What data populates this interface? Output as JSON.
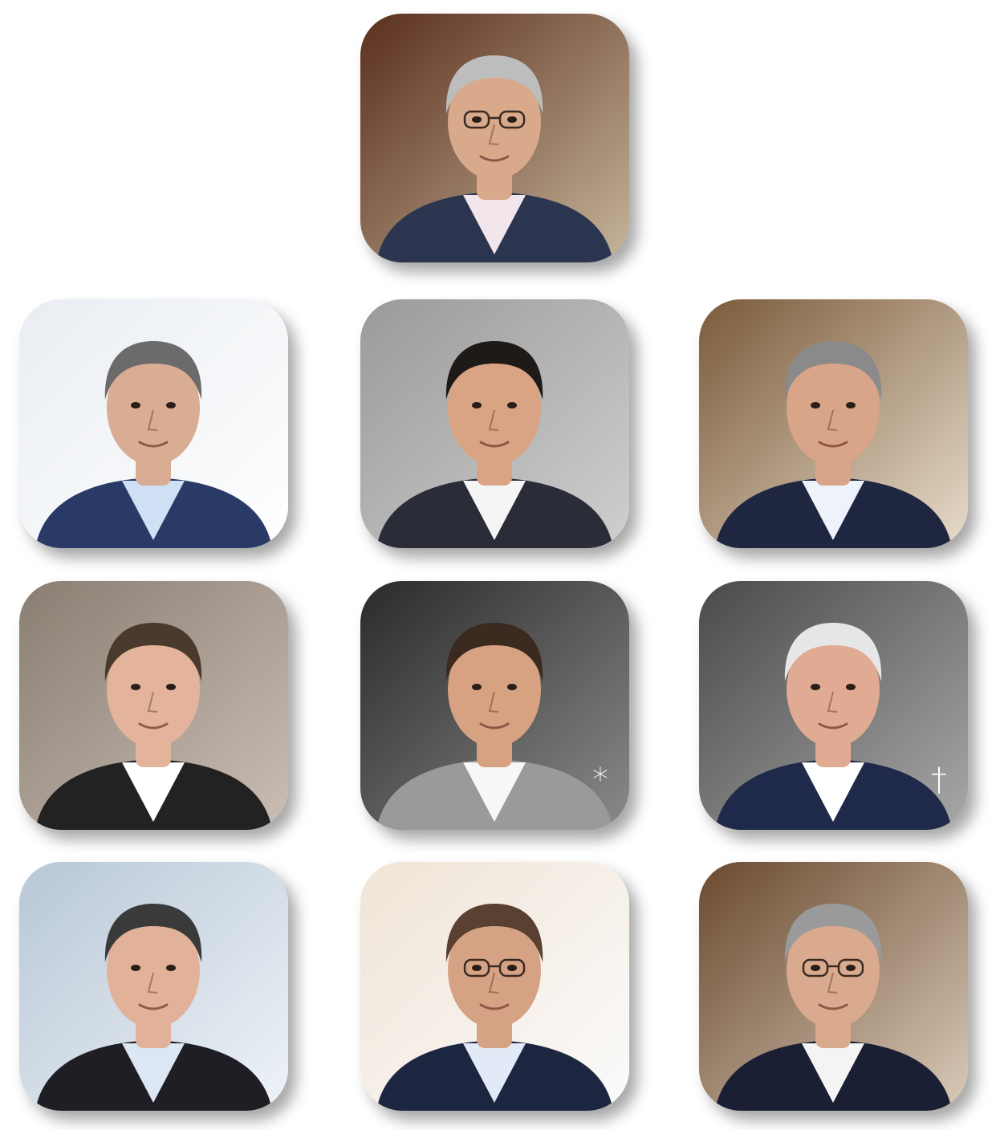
{
  "portraits": [
    {
      "id": "top",
      "bg": [
        "#5a2e1e",
        "#c6b59a"
      ],
      "skin": "#d9a98c",
      "hair": "#bdbdbd",
      "suit": "#2c3550",
      "shirt": "#f2e6ec",
      "glasses": true
    },
    {
      "id": "row1-left",
      "bg": [
        "#e9edf2",
        "#ffffff"
      ],
      "skin": "#d9ad93",
      "hair": "#6b6b6b",
      "suit": "#2a3a66",
      "shirt": "#cfe0f5",
      "glasses": false
    },
    {
      "id": "row1-center",
      "bg": [
        "#9a9a9a",
        "#cfcfcf"
      ],
      "skin": "#d9a483",
      "hair": "#1e1a18",
      "suit": "#2a2d38",
      "shirt": "#f5f5f5",
      "glasses": false
    },
    {
      "id": "row1-right",
      "bg": [
        "#7a5a3a",
        "#e8dccb"
      ],
      "skin": "#d8a588",
      "hair": "#8a8a8a",
      "suit": "#1f2740",
      "shirt": "#eef2fb",
      "glasses": false
    },
    {
      "id": "row2-left",
      "bg": [
        "#8a7d72",
        "#cbbeb4"
      ],
      "skin": "#e3b49b",
      "hair": "#4a3a2e",
      "suit": "#222222",
      "shirt": "#ffffff",
      "glasses": false
    },
    {
      "id": "row2-center",
      "bg": [
        "#2a2a2a",
        "#8a8a8a"
      ],
      "skin": "#d7a282",
      "hair": "#3a2a20",
      "suit": "#9a9a9a",
      "shirt": "#f7f7f7",
      "glasses": false,
      "mark": "*"
    },
    {
      "id": "row2-right",
      "bg": [
        "#4a4a4a",
        "#a8a8a8"
      ],
      "skin": "#e0ab92",
      "hair": "#e6e6e6",
      "suit": "#1f2a4a",
      "shirt": "#ffffff",
      "glasses": false,
      "mark": "†"
    },
    {
      "id": "row3-left",
      "bg": [
        "#b8c7d6",
        "#eef3f8"
      ],
      "skin": "#e2b19a",
      "hair": "#3a3a3a",
      "suit": "#1e1e24",
      "shirt": "#dde6f3",
      "glasses": false
    },
    {
      "id": "row3-center",
      "bg": [
        "#f0e4d6",
        "#fbfbfb"
      ],
      "skin": "#d6a284",
      "hair": "#5a4030",
      "suit": "#1d2640",
      "shirt": "#e3eaf7",
      "glasses": true
    },
    {
      "id": "row3-right",
      "bg": [
        "#6a4a30",
        "#d9cab8"
      ],
      "skin": "#d9aa8e",
      "hair": "#9a9a9a",
      "suit": "#1a1f33",
      "shirt": "#f4f4f4",
      "glasses": true
    }
  ]
}
